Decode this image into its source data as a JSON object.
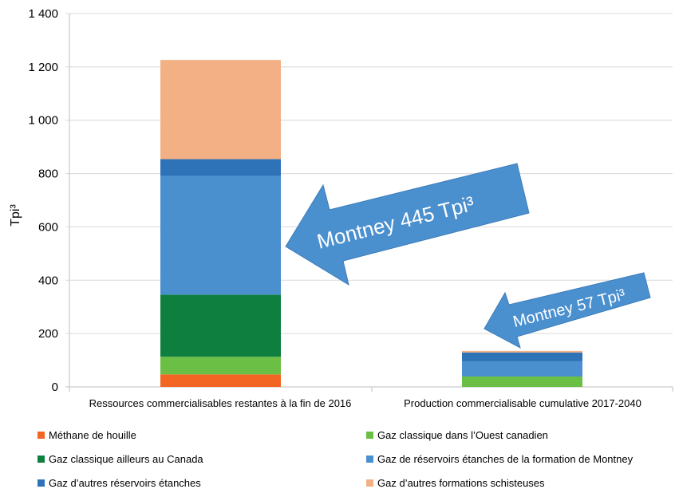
{
  "chart_data": {
    "type": "bar",
    "stacked": true,
    "title": "",
    "xlabel": "",
    "ylabel": "Tpi³",
    "ylim": [
      0,
      1400
    ],
    "yticks": [
      0,
      200,
      400,
      600,
      800,
      1000,
      1200,
      1400
    ],
    "ytick_labels": [
      "0",
      "200",
      "400",
      "600",
      "800",
      "1 000",
      "1 200",
      "1 400"
    ],
    "grid": true,
    "legend_position": "bottom",
    "categories": [
      "Ressources commercialisables restantes à la fin de 2016",
      "Production commercialisable cumulative 2017-2040"
    ],
    "series": [
      {
        "name": "Méthane de houille",
        "color": "#F26522",
        "values": [
          47,
          0
        ]
      },
      {
        "name": "Gaz classique dans l’Ouest canadien",
        "color": "#6BBF45",
        "values": [
          66,
          39
        ]
      },
      {
        "name": "Gaz classique ailleurs au Canada",
        "color": "#0F7F3F",
        "values": [
          233,
          0
        ]
      },
      {
        "name": "Gaz de réservoirs étanches de la formation de Montney",
        "color": "#4A8FCE",
        "values": [
          445,
          57
        ]
      },
      {
        "name": "Gaz d’autres réservoirs étanches",
        "color": "#2E72B8",
        "values": [
          63,
          33
        ]
      },
      {
        "name": "Gaz d’autres formations schisteuses",
        "color": "#F2B084",
        "values": [
          372,
          6
        ]
      }
    ],
    "annotations": [
      {
        "text": "Montney 445 Tpi³",
        "points_to": "Ressources commercialisables restantes à la fin de 2016 — Montney segment",
        "color": "#4A8FCE"
      },
      {
        "text": "Montney 57  Tpi³",
        "points_to": "Production commercialisable cumulative 2017-2040",
        "color": "#4A8FCE"
      }
    ]
  },
  "legend": {
    "items": [
      {
        "label": "Méthane de houille",
        "color": "#F26522"
      },
      {
        "label": "Gaz classique dans l’Ouest canadien",
        "color": "#6BBF45"
      },
      {
        "label": "Gaz classique ailleurs au Canada",
        "color": "#0F7F3F"
      },
      {
        "label": "Gaz de réservoirs étanches de la formation de Montney",
        "color": "#4A8FCE"
      },
      {
        "label": "Gaz d’autres réservoirs étanches",
        "color": "#2E72B8"
      },
      {
        "label": "Gaz d’autres formations schisteuses",
        "color": "#F2B084"
      }
    ]
  },
  "callouts": {
    "big": "Montney 445 Tpi³",
    "small": "Montney 57  Tpi³"
  },
  "colors": {
    "grid": "#D9D9D9",
    "axis": "#BFBFBF",
    "callout_fill": "#4A8FCE",
    "callout_stroke": "#3E7DBA"
  }
}
